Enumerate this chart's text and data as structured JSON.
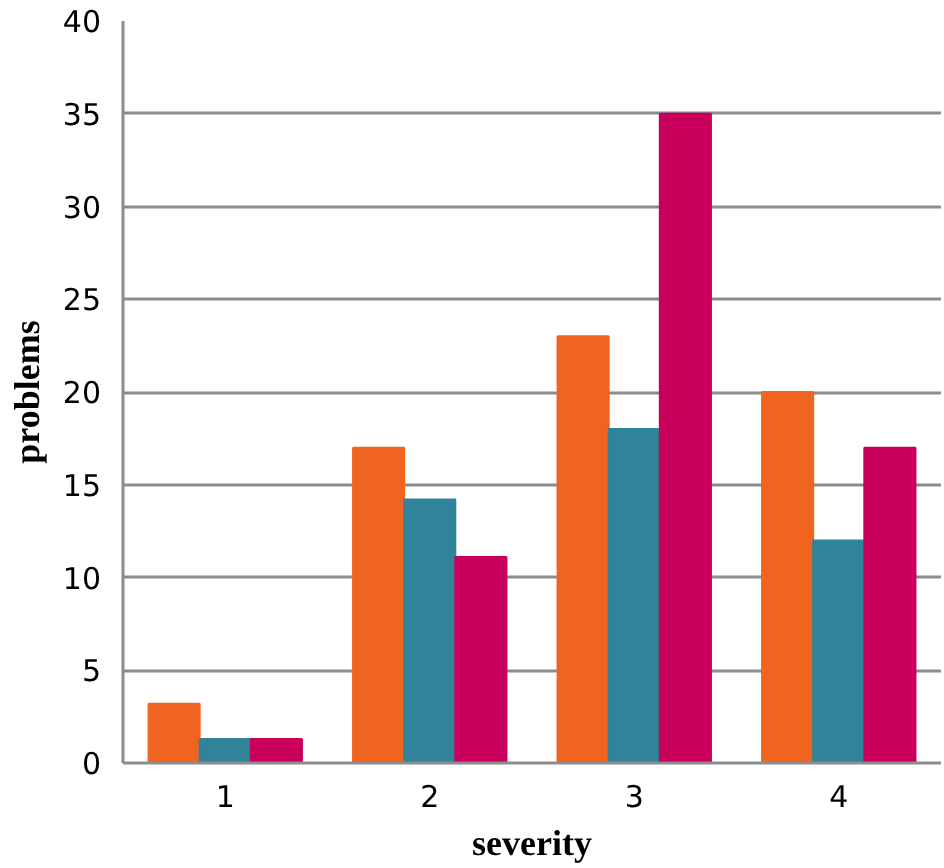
{
  "chart_data": {
    "type": "bar",
    "xlabel": "severity",
    "ylabel": "problems",
    "categories": [
      "1",
      "2",
      "3",
      "4"
    ],
    "series": [
      {
        "color": "#ef6520",
        "values": [
          3.2,
          17,
          23,
          20
        ]
      },
      {
        "color": "#318399",
        "values": [
          1.3,
          14.2,
          18,
          12
        ]
      },
      {
        "color": "#c8005c",
        "values": [
          1.3,
          11.1,
          35,
          17
        ]
      }
    ],
    "ylim": [
      0,
      40
    ],
    "yticks": [
      0,
      5,
      10,
      15,
      20,
      25,
      30,
      35,
      40
    ],
    "grid": "y"
  }
}
